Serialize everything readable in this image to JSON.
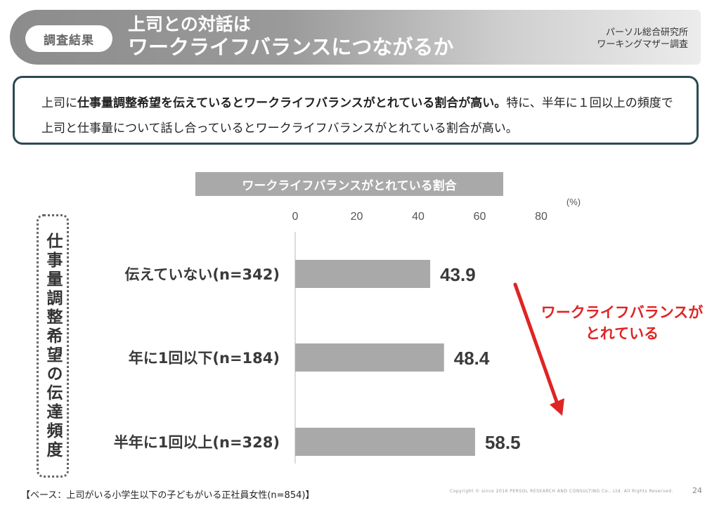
{
  "header": {
    "badge": "調査結果",
    "title_line1": "上司との対話は",
    "title_line2": "ワークライフバランスにつながるか",
    "source_line1": "パーソル総合研究所",
    "source_line2": "ワーキングマザー調査"
  },
  "summary": {
    "bold_part1": "上司に",
    "bold_part2": "仕事量調整希望を伝えているとワークライフバランスがとれている割合が高い。",
    "rest": "特に、半年に１回以上の頻度で上司と仕事量について話し合っているとワークライフバランスがとれている割合が高い。"
  },
  "vertical_label": "仕事量調整希望の伝達頻度",
  "annotation": {
    "line1": "ワークライフバランスが",
    "line2": "とれている"
  },
  "footer": {
    "base_note": "【ベース：上司がいる小学生以下の子どもがいる正社員女性(n=854)】",
    "copyright": "Copyright © since 2016  PERSOL  RESEARCH  AND  CONSULTING  Co., Ltd. All Rights Reserved.",
    "page": "24"
  },
  "chart_data": {
    "type": "bar",
    "orientation": "horizontal",
    "title": "ワークライフバランスがとれている割合",
    "unit": "(%)",
    "ticks": [
      0,
      20,
      40,
      60,
      80
    ],
    "xlim": [
      0,
      80
    ],
    "categories": [
      "伝えていない(n=342)",
      "年に1回以下(n=184)",
      "半年に1回以上(n=328)"
    ],
    "values": [
      43.9,
      48.4,
      58.5
    ],
    "value_labels": [
      "43.9",
      "48.4",
      "58.5"
    ],
    "bar_color": "#a9a9a9",
    "accent_color": "#e02424"
  }
}
